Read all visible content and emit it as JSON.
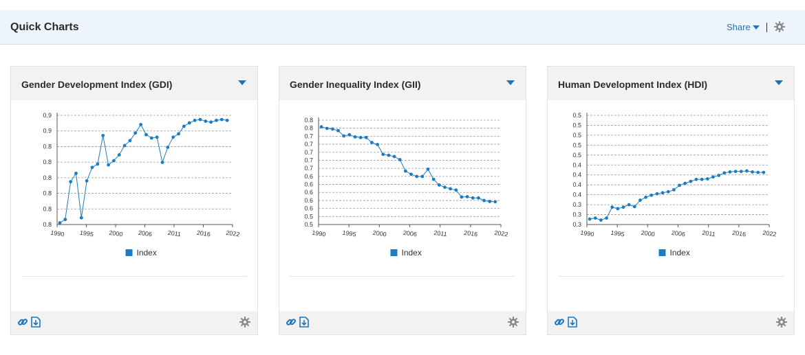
{
  "header": {
    "title": "Quick Charts",
    "share_label": "Share"
  },
  "colors": {
    "accent": "#1b75bc",
    "series": "#1a7cc1",
    "grid": "#9a9a9a",
    "header_bg": "#eef4fb",
    "card_header_bg": "#f2f2f2"
  },
  "icons": {
    "share_caret": "caret-down-icon",
    "settings": "gear-icon",
    "link": "link-icon",
    "download": "download-icon"
  },
  "cards": [
    {
      "title": "Gender Development Index (GDI)",
      "chart_data": {
        "type": "line",
        "title": "Gender Development Index (GDI)",
        "xlabel": "",
        "ylabel": "",
        "x_ticks": [
          "1990",
          "1995",
          "2000",
          "2006",
          "2011",
          "2016",
          "2022"
        ],
        "y_ticks": [
          "0.8",
          "0.8",
          "0.8",
          "0.8",
          "0.8",
          "0.8",
          "0.9",
          "0.9"
        ],
        "ylim": [
          0.785,
          0.915
        ],
        "legend": "bottom-center",
        "grid": true,
        "series": [
          {
            "name": "Index",
            "x": [
              1990,
              1991,
              1992,
              1993,
              1994,
              1995,
              1996,
              1997,
              1998,
              1999,
              2000,
              2001,
              2002,
              2003,
              2004,
              2005,
              2006,
              2007,
              2008,
              2009,
              2010,
              2011,
              2012,
              2013,
              2014,
              2015,
              2016,
              2017,
              2018,
              2019,
              2020,
              2021
            ],
            "values": [
              0.787,
              0.791,
              0.836,
              0.846,
              0.793,
              0.837,
              0.853,
              0.857,
              0.891,
              0.856,
              0.861,
              0.868,
              0.879,
              0.885,
              0.894,
              0.904,
              0.892,
              0.888,
              0.889,
              0.859,
              0.877,
              0.889,
              0.893,
              0.902,
              0.906,
              0.909,
              0.91,
              0.908,
              0.907,
              0.909,
              0.91,
              0.909
            ]
          }
        ]
      }
    },
    {
      "title": "Gender Inequality Index (GII)",
      "chart_data": {
        "type": "line",
        "title": "Gender Inequality Index (GII)",
        "xlabel": "",
        "ylabel": "",
        "x_ticks": [
          "1990",
          "1995",
          "2000",
          "2006",
          "2011",
          "2016",
          "2022"
        ],
        "y_ticks": [
          "0.5",
          "0.5",
          "0.6",
          "0.6",
          "0.6",
          "0.6",
          "0.6",
          "0.7",
          "0.7",
          "0.7",
          "0.7",
          "0.7",
          "0.8",
          "0.8"
        ],
        "ylim": [
          0.5,
          0.83
        ],
        "legend": "bottom-center",
        "grid": true,
        "series": [
          {
            "name": "Index",
            "x": [
              1990,
              1991,
              1992,
              1993,
              1994,
              1995,
              1996,
              1997,
              1998,
              1999,
              2000,
              2001,
              2002,
              2003,
              2004,
              2005,
              2006,
              2007,
              2008,
              2009,
              2010,
              2011,
              2012,
              2013,
              2014,
              2015,
              2016,
              2017,
              2018,
              2019,
              2020,
              2021
            ],
            "values": [
              0.809,
              0.804,
              0.802,
              0.797,
              0.78,
              0.784,
              0.777,
              0.775,
              0.775,
              0.759,
              0.753,
              0.722,
              0.719,
              0.715,
              0.705,
              0.669,
              0.659,
              0.652,
              0.652,
              0.675,
              0.643,
              0.625,
              0.618,
              0.613,
              0.609,
              0.587,
              0.588,
              0.584,
              0.584,
              0.576,
              0.573,
              0.572
            ]
          }
        ]
      }
    },
    {
      "title": "Human Development Index (HDI)",
      "chart_data": {
        "type": "line",
        "title": "Human Development Index (HDI)",
        "xlabel": "",
        "ylabel": "",
        "x_ticks": [
          "1990",
          "1995",
          "2000",
          "2006",
          "2011",
          "2016",
          "2022"
        ],
        "y_ticks": [
          "0.3",
          "0.3",
          "0.3",
          "0.4",
          "0.4",
          "0.4",
          "0.4",
          "0.5",
          "0.5",
          "0.5",
          "0.5",
          "0.5"
        ],
        "ylim": [
          0.3,
          0.52
        ],
        "legend": "bottom-center",
        "grid": true,
        "series": [
          {
            "name": "Index",
            "x": [
              1990,
              1991,
              1992,
              1993,
              1994,
              1995,
              1996,
              1997,
              1998,
              1999,
              2000,
              2001,
              2002,
              2003,
              2004,
              2005,
              2006,
              2007,
              2008,
              2009,
              2010,
              2011,
              2012,
              2013,
              2014,
              2015,
              2016,
              2017,
              2018,
              2019,
              2020,
              2021
            ],
            "values": [
              0.311,
              0.313,
              0.309,
              0.313,
              0.335,
              0.332,
              0.335,
              0.34,
              0.336,
              0.349,
              0.355,
              0.359,
              0.362,
              0.364,
              0.366,
              0.37,
              0.379,
              0.383,
              0.387,
              0.391,
              0.391,
              0.392,
              0.396,
              0.399,
              0.404,
              0.406,
              0.407,
              0.407,
              0.408,
              0.406,
              0.405,
              0.405
            ]
          }
        ]
      }
    }
  ]
}
